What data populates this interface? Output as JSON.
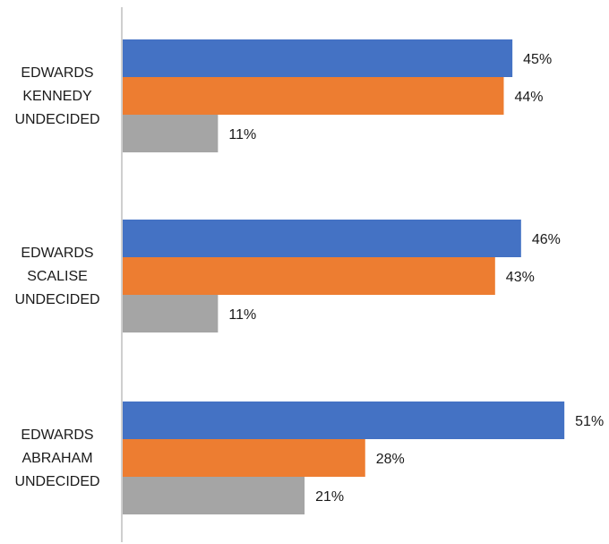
{
  "chart_data": {
    "type": "bar",
    "orientation": "horizontal",
    "value_format": "percent",
    "xlim": [
      0,
      60
    ],
    "grid": false,
    "legend": "none",
    "groups": [
      {
        "lines": [
          "EDWARDS",
          "KENNEDY",
          "UNDECIDED"
        ],
        "values": [
          45,
          44,
          11
        ]
      },
      {
        "lines": [
          "EDWARDS",
          "SCALISE",
          "UNDECIDED"
        ],
        "values": [
          46,
          43,
          11
        ]
      },
      {
        "lines": [
          "EDWARDS",
          "ABRAHAM",
          "UNDECIDED"
        ],
        "values": [
          51,
          28,
          21
        ]
      }
    ],
    "series": [
      {
        "color": "#4472c4"
      },
      {
        "color": "#ed7d31"
      },
      {
        "color": "#a5a5a5"
      }
    ]
  }
}
